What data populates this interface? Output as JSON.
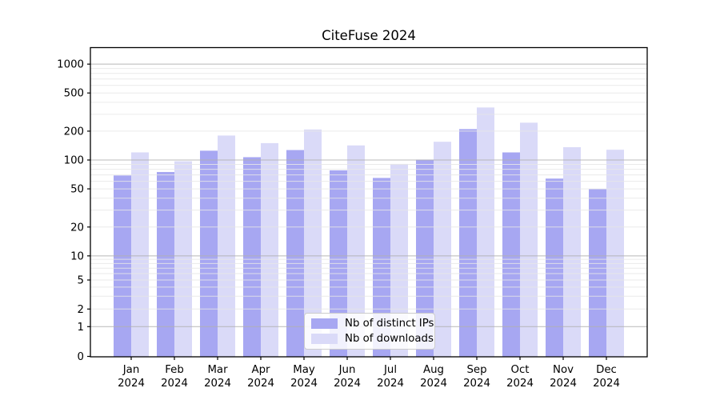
{
  "chart_data": {
    "type": "bar",
    "title": "CiteFuse 2024",
    "categories": [
      "Jan",
      "Feb",
      "Mar",
      "Apr",
      "May",
      "Jun",
      "Jul",
      "Aug",
      "Sep",
      "Oct",
      "Nov",
      "Dec"
    ],
    "category_year": "2024",
    "series": [
      {
        "name": "Nb of distinct IPs",
        "color": "#a7a7f2",
        "values": [
          69,
          75,
          125,
          107,
          127,
          78,
          65,
          101,
          210,
          120,
          64,
          50
        ]
      },
      {
        "name": "Nb of downloads",
        "color": "#dadaf8",
        "values": [
          120,
          97,
          180,
          150,
          208,
          142,
          91,
          155,
          353,
          245,
          136,
          128
        ]
      }
    ],
    "xlabel": "",
    "ylabel": "",
    "yscale": "symlog",
    "ytick_labels": [
      "0",
      "1",
      "2",
      "5",
      "10",
      "20",
      "50",
      "100",
      "200",
      "500",
      "1000"
    ],
    "yticks": [
      0,
      1,
      2,
      5,
      10,
      20,
      50,
      100,
      200,
      500,
      1000
    ],
    "ylim": [
      0,
      1500
    ],
    "grid": "major and minor horizontal gridlines, drawn above bars",
    "legend_position": "lower center",
    "colors": {
      "major_grid": "#b0b0b0",
      "minor_grid": "#e6e6e6",
      "axis": "#000000",
      "text": "#000000"
    }
  }
}
